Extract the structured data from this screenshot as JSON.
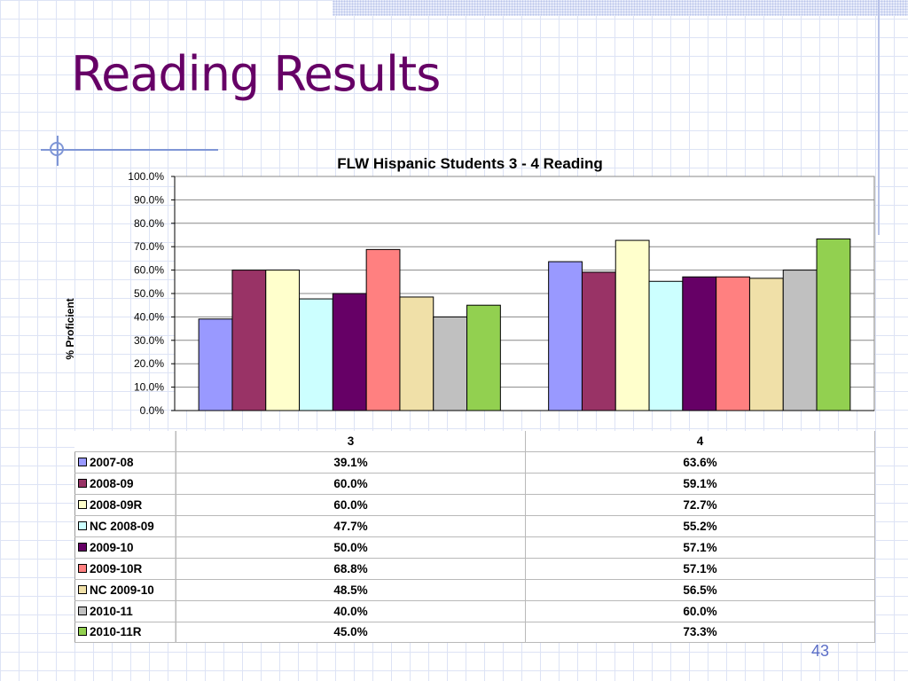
{
  "slide": {
    "title": "Reading Results",
    "page_number": "43"
  },
  "chart_data": {
    "type": "bar",
    "title": "FLW Hispanic Students 3 - 4 Reading",
    "xlabel": "",
    "ylabel": "% Proficient",
    "ylim": [
      0,
      100
    ],
    "y_ticks": [
      "0.0%",
      "10.0%",
      "20.0%",
      "30.0%",
      "40.0%",
      "50.0%",
      "60.0%",
      "70.0%",
      "80.0%",
      "90.0%",
      "100.0%"
    ],
    "grid": true,
    "legend": "data table below chart",
    "categories": [
      "3",
      "4"
    ],
    "series": [
      {
        "name": "2007-08",
        "color": "#9999ff",
        "values": [
          39.1,
          63.6
        ],
        "labels": [
          "39.1%",
          "63.6%"
        ]
      },
      {
        "name": "2008-09",
        "color": "#993366",
        "values": [
          60.0,
          59.1
        ],
        "labels": [
          "60.0%",
          "59.1%"
        ]
      },
      {
        "name": "2008-09R",
        "color": "#ffffcc",
        "values": [
          60.0,
          72.7
        ],
        "labels": [
          "60.0%",
          "72.7%"
        ]
      },
      {
        "name": "NC 2008-09",
        "color": "#ccffff",
        "values": [
          47.7,
          55.2
        ],
        "labels": [
          "47.7%",
          "55.2%"
        ]
      },
      {
        "name": "2009-10",
        "color": "#660066",
        "values": [
          50.0,
          57.1
        ],
        "labels": [
          "50.0%",
          "57.1%"
        ]
      },
      {
        "name": "2009-10R",
        "color": "#ff8080",
        "values": [
          68.8,
          57.1
        ],
        "labels": [
          "68.8%",
          "57.1%"
        ]
      },
      {
        "name": "NC 2009-10",
        "color": "#f0e0a8",
        "values": [
          48.5,
          56.5
        ],
        "labels": [
          "48.5%",
          "56.5%"
        ]
      },
      {
        "name": "2010-11",
        "color": "#c0c0c0",
        "values": [
          40.0,
          60.0
        ],
        "labels": [
          "40.0%",
          "60.0%"
        ]
      },
      {
        "name": "2010-11R",
        "color": "#92d050",
        "values": [
          45.0,
          73.3
        ],
        "labels": [
          "45.0%",
          "73.3%"
        ]
      }
    ]
  }
}
